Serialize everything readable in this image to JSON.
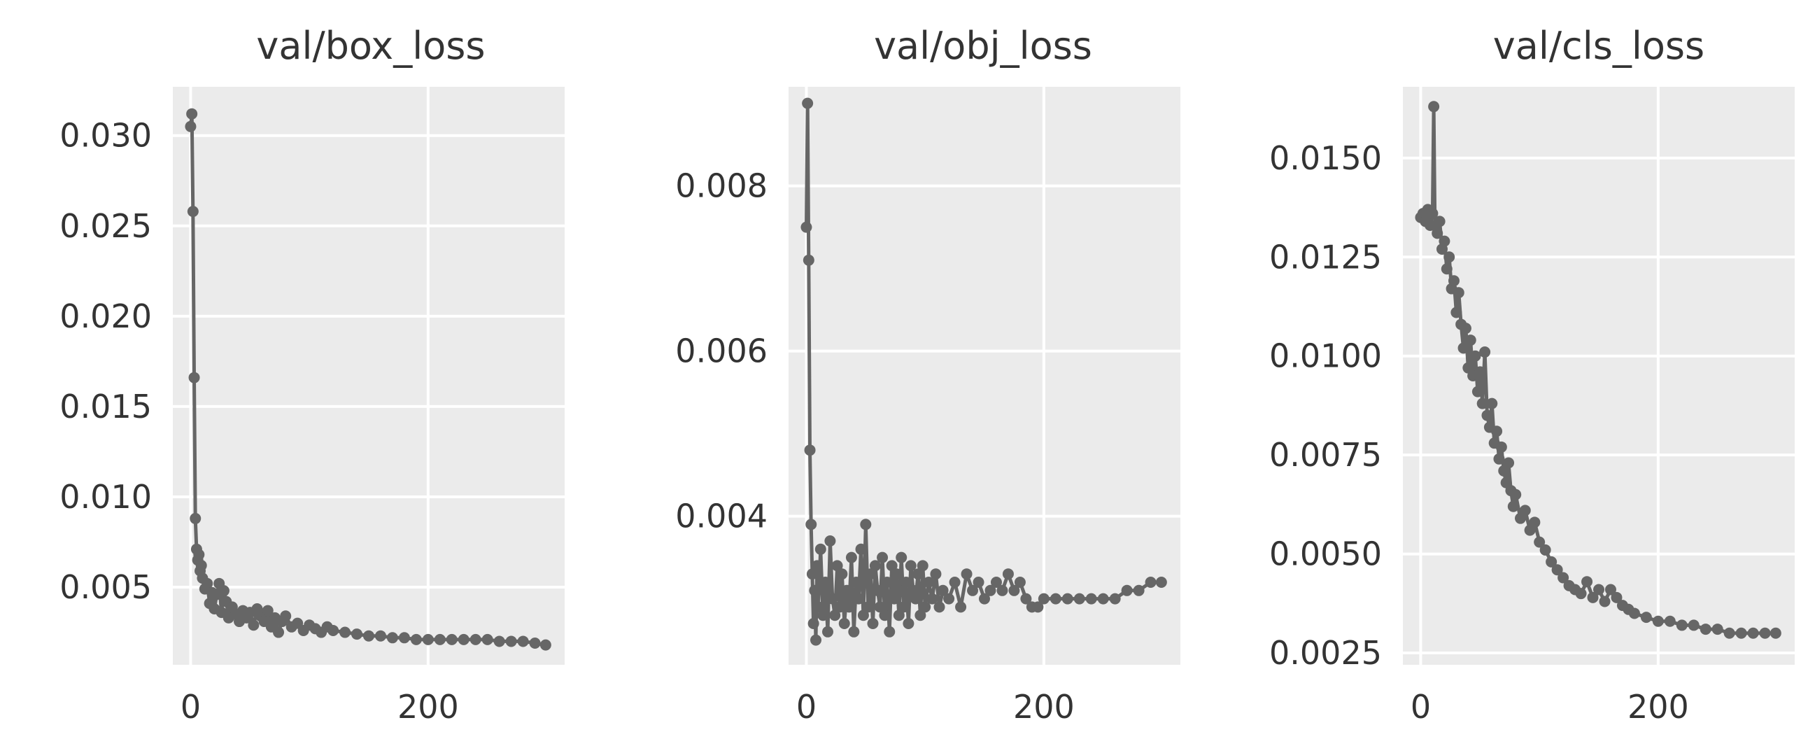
{
  "chart_data": [
    {
      "type": "line",
      "title": "val/box_loss",
      "xlabel": "",
      "ylabel": "",
      "xlim": [
        -15,
        315
      ],
      "ylim": [
        0.0007,
        0.0327
      ],
      "x_ticks": [
        0,
        200
      ],
      "x_tick_labels": [
        "0",
        "200"
      ],
      "y_ticks": [
        0.005,
        0.01,
        0.015,
        0.02,
        0.025,
        0.03
      ],
      "y_tick_labels": [
        "0.005",
        "0.010",
        "0.015",
        "0.020",
        "0.025",
        "0.030"
      ],
      "grid": true,
      "series": [
        {
          "color": "#666666",
          "x": [
            0,
            1,
            2,
            3,
            4,
            5,
            6,
            7,
            8,
            9,
            10,
            12,
            14,
            16,
            18,
            20,
            22,
            24,
            26,
            28,
            30,
            32,
            35,
            38,
            41,
            44,
            47,
            50,
            53,
            56,
            59,
            62,
            65,
            68,
            71,
            74,
            77,
            80,
            85,
            90,
            95,
            100,
            105,
            110,
            115,
            120,
            130,
            140,
            150,
            160,
            170,
            180,
            190,
            200,
            210,
            220,
            230,
            240,
            250,
            260,
            270,
            280,
            290,
            299
          ],
          "values": [
            0.0305,
            0.0312,
            0.0258,
            0.0166,
            0.0088,
            0.0071,
            0.0065,
            0.0068,
            0.0059,
            0.0062,
            0.0055,
            0.0049,
            0.0052,
            0.0041,
            0.0047,
            0.0038,
            0.0046,
            0.0052,
            0.0036,
            0.0048,
            0.0042,
            0.0033,
            0.0039,
            0.0035,
            0.0031,
            0.0037,
            0.0033,
            0.0036,
            0.0029,
            0.0038,
            0.0034,
            0.0031,
            0.0037,
            0.0028,
            0.0033,
            0.0025,
            0.0031,
            0.0034,
            0.0028,
            0.003,
            0.0026,
            0.0029,
            0.0027,
            0.0025,
            0.0028,
            0.0026,
            0.0025,
            0.0024,
            0.0023,
            0.0023,
            0.0022,
            0.0022,
            0.0021,
            0.0021,
            0.0021,
            0.0021,
            0.0021,
            0.0021,
            0.0021,
            0.002,
            0.002,
            0.002,
            0.0019,
            0.0018
          ]
        }
      ]
    },
    {
      "type": "line",
      "title": "val/obj_loss",
      "xlabel": "",
      "ylabel": "",
      "xlim": [
        -15,
        315
      ],
      "ylim": [
        0.0022,
        0.0092
      ],
      "x_ticks": [
        0,
        200
      ],
      "x_tick_labels": [
        "0",
        "200"
      ],
      "y_ticks": [
        0.004,
        0.006,
        0.008
      ],
      "y_tick_labels": [
        "0.004",
        "0.006",
        "0.008"
      ],
      "grid": true,
      "series": [
        {
          "color": "#666666",
          "x": [
            0,
            1,
            2,
            3,
            4,
            5,
            6,
            7,
            8,
            9,
            10,
            12,
            14,
            16,
            18,
            20,
            22,
            24,
            26,
            28,
            30,
            32,
            34,
            36,
            38,
            40,
            42,
            44,
            46,
            48,
            50,
            52,
            54,
            56,
            58,
            60,
            62,
            64,
            66,
            68,
            70,
            72,
            74,
            76,
            78,
            80,
            82,
            84,
            86,
            88,
            90,
            92,
            94,
            96,
            98,
            100,
            103,
            106,
            109,
            112,
            115,
            120,
            125,
            130,
            135,
            140,
            145,
            150,
            155,
            160,
            165,
            170,
            175,
            180,
            185,
            190,
            195,
            200,
            210,
            220,
            230,
            240,
            250,
            260,
            270,
            280,
            290,
            299
          ],
          "values": [
            0.0075,
            0.009,
            0.0071,
            0.0048,
            0.0039,
            0.0033,
            0.0027,
            0.0031,
            0.0025,
            0.0034,
            0.0029,
            0.0036,
            0.0028,
            0.0032,
            0.0026,
            0.0037,
            0.003,
            0.0028,
            0.0034,
            0.0029,
            0.0033,
            0.0027,
            0.0031,
            0.0029,
            0.0035,
            0.0026,
            0.0032,
            0.003,
            0.0036,
            0.0028,
            0.0039,
            0.0029,
            0.0033,
            0.0027,
            0.0034,
            0.0031,
            0.0029,
            0.0035,
            0.0028,
            0.0032,
            0.0026,
            0.0034,
            0.003,
            0.0033,
            0.0028,
            0.0035,
            0.0029,
            0.0032,
            0.0027,
            0.0034,
            0.0031,
            0.003,
            0.0033,
            0.0028,
            0.0034,
            0.0029,
            0.0032,
            0.003,
            0.0033,
            0.0029,
            0.0031,
            0.003,
            0.0032,
            0.0029,
            0.0033,
            0.0031,
            0.0032,
            0.003,
            0.0031,
            0.0032,
            0.0031,
            0.0033,
            0.0031,
            0.0032,
            0.003,
            0.0029,
            0.0029,
            0.003,
            0.003,
            0.003,
            0.003,
            0.003,
            0.003,
            0.003,
            0.0031,
            0.0031,
            0.0032,
            0.0032
          ]
        }
      ]
    },
    {
      "type": "line",
      "title": "val/cls_loss",
      "xlabel": "",
      "ylabel": "",
      "xlim": [
        -15,
        315
      ],
      "ylim": [
        0.0022,
        0.0168
      ],
      "x_ticks": [
        0,
        200
      ],
      "x_tick_labels": [
        "0",
        "200"
      ],
      "y_ticks": [
        0.0025,
        0.005,
        0.0075,
        0.01,
        0.0125,
        0.015
      ],
      "y_tick_labels": [
        "0.0025",
        "0.0050",
        "0.0075",
        "0.0100",
        "0.0125",
        "0.0150"
      ],
      "grid": true,
      "series": [
        {
          "color": "#666666",
          "x": [
            0,
            2,
            4,
            6,
            8,
            10,
            11,
            12,
            14,
            16,
            18,
            20,
            22,
            24,
            26,
            28,
            30,
            32,
            34,
            36,
            38,
            40,
            42,
            44,
            46,
            48,
            50,
            52,
            54,
            56,
            58,
            60,
            62,
            64,
            66,
            68,
            70,
            72,
            74,
            76,
            78,
            80,
            84,
            88,
            92,
            96,
            100,
            105,
            110,
            115,
            120,
            125,
            130,
            135,
            140,
            145,
            150,
            155,
            160,
            165,
            170,
            175,
            180,
            190,
            200,
            210,
            220,
            230,
            240,
            250,
            260,
            270,
            280,
            290,
            299
          ],
          "values": [
            0.0135,
            0.0136,
            0.0134,
            0.0137,
            0.0133,
            0.0136,
            0.0163,
            0.0133,
            0.0131,
            0.0134,
            0.0127,
            0.0129,
            0.0122,
            0.0125,
            0.0117,
            0.0119,
            0.0111,
            0.0116,
            0.0108,
            0.0102,
            0.0107,
            0.0097,
            0.0104,
            0.0095,
            0.01,
            0.0091,
            0.0096,
            0.0088,
            0.0101,
            0.0085,
            0.0082,
            0.0088,
            0.0078,
            0.0081,
            0.0074,
            0.0077,
            0.0071,
            0.0068,
            0.0073,
            0.0066,
            0.0062,
            0.0065,
            0.0059,
            0.0061,
            0.0056,
            0.0058,
            0.0053,
            0.0051,
            0.0048,
            0.0046,
            0.0044,
            0.0042,
            0.0041,
            0.004,
            0.0043,
            0.0039,
            0.0041,
            0.0038,
            0.0041,
            0.0039,
            0.0037,
            0.0036,
            0.0035,
            0.0034,
            0.0033,
            0.0033,
            0.0032,
            0.0032,
            0.0031,
            0.0031,
            0.003,
            0.003,
            0.003,
            0.003,
            0.003
          ]
        }
      ]
    }
  ]
}
